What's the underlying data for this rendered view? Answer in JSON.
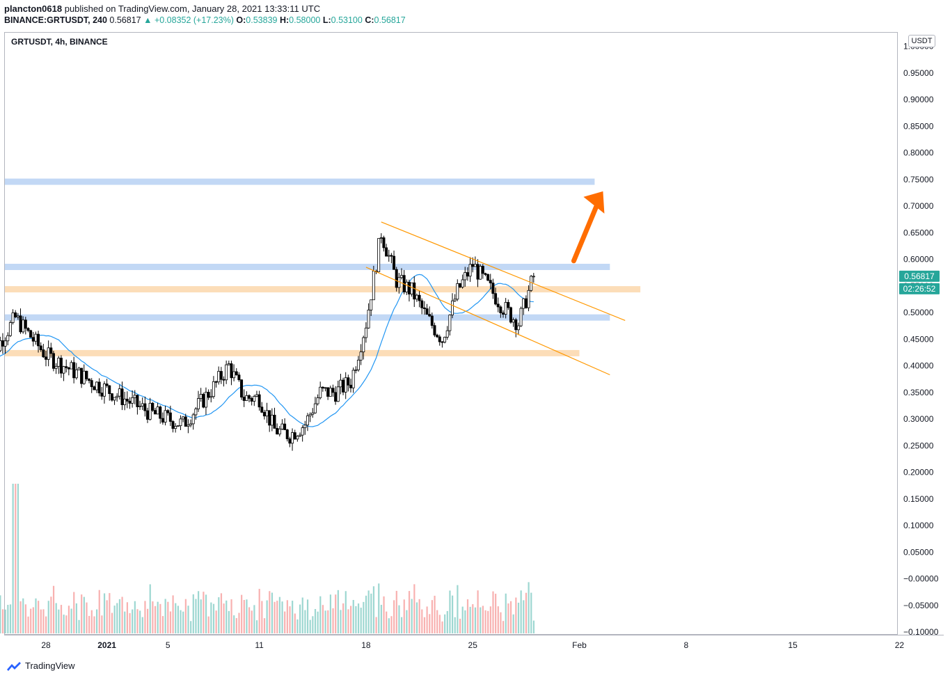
{
  "header": {
    "line1": {
      "user": "plancton0618",
      "rest": "published on TradingView.com, January 28, 2021 13:33:11 UTC"
    },
    "line2": {
      "symbol": "BINANCE:GRTUSDT, 240",
      "price": "0.56817",
      "change": "▲ +0.08352 (+17.23%)",
      "o_label": "O:",
      "o": "0.53839",
      "h_label": "H:",
      "h": "0.58000",
      "l_label": "L:",
      "l": "0.53100",
      "c_label": "C:",
      "c": "0.56817"
    }
  },
  "chart_title": "GRTUSDT, 4h, BINANCE",
  "unit": "USDT",
  "price_label": "0.56817",
  "countdown_label": "02:26:52",
  "footer": {
    "brand": "TradingView"
  },
  "colors": {
    "up": "#26a69a",
    "down": "#ef5350",
    "ma": "#2196f3",
    "zone_blue": "#bbd4f4",
    "zone_orange": "#fcd9b0",
    "channel": "#ff9800",
    "arrow": "#ff6d00",
    "price_tag": "#26a69a"
  },
  "chart_data": {
    "type": "candlestick",
    "interval": "4h",
    "x_ticks": [
      "28",
      "2021",
      "5",
      "11",
      "18",
      "25",
      "Feb",
      "8",
      "15",
      "22"
    ],
    "y_ticks": [
      "1.00000",
      "0.95000",
      "0.90000",
      "0.85000",
      "0.80000",
      "0.75000",
      "0.70000",
      "0.65000",
      "0.60000",
      "0.55000",
      "0.50000",
      "0.45000",
      "0.40000",
      "0.35000",
      "0.30000",
      "0.25000",
      "0.20000",
      "0.15000",
      "0.10000",
      "0.05000",
      "−0.00000",
      "−0.05000",
      "−0.10000"
    ],
    "ylim": [
      -0.1,
      1.0
    ],
    "last_close": 0.56817,
    "price_key_points": [
      [
        "Dec 24",
        0.4
      ],
      [
        "Dec 26",
        0.49
      ],
      [
        "Dec 28",
        0.42
      ],
      [
        "Dec 31",
        0.37
      ],
      [
        "Jan 3",
        0.31
      ],
      [
        "Jan 5",
        0.29
      ],
      [
        "Jan 7",
        0.36
      ],
      [
        "Jan 8",
        0.4
      ],
      [
        "Jan 9",
        0.34
      ],
      [
        "Jan 10",
        0.34
      ],
      [
        "Jan 11",
        0.28
      ],
      [
        "Jan 12",
        0.27
      ],
      [
        "Jan 13",
        0.29
      ],
      [
        "Jan 14",
        0.35
      ],
      [
        "Jan 15",
        0.35
      ],
      [
        "Jan 16",
        0.37
      ],
      [
        "Jan 17",
        0.48
      ],
      [
        "Jan 18",
        0.65
      ],
      [
        "Jan 19",
        0.56
      ],
      [
        "Jan 20",
        0.54
      ],
      [
        "Jan 21",
        0.49
      ],
      [
        "Jan 22",
        0.45
      ],
      [
        "Jan 23",
        0.54
      ],
      [
        "Jan 24",
        0.59
      ],
      [
        "Jan 25",
        0.55
      ],
      [
        "Jan 26",
        0.51
      ],
      [
        "Jan 27",
        0.48
      ],
      [
        "Jan 28",
        0.568
      ]
    ],
    "horizontal_zones": [
      {
        "color": "blue",
        "value": 0.745,
        "to": "Feb 1"
      },
      {
        "color": "blue",
        "value": 0.585,
        "to": "Feb 2"
      },
      {
        "color": "orange",
        "value": 0.543,
        "to": "Feb 4"
      },
      {
        "color": "blue",
        "value": 0.49,
        "to": "Feb 2"
      },
      {
        "color": "orange",
        "value": 0.423,
        "to": "Jan 31"
      }
    ],
    "channel": [
      {
        "from": [
          "Jan 18",
          0.67
        ],
        "to": [
          "Feb 3",
          0.485
        ]
      },
      {
        "from": [
          "Jan 17",
          0.585
        ],
        "to": [
          "Feb 2",
          0.383
        ]
      }
    ],
    "volume": {
      "max_day": "Dec 26",
      "overlay": true
    }
  }
}
